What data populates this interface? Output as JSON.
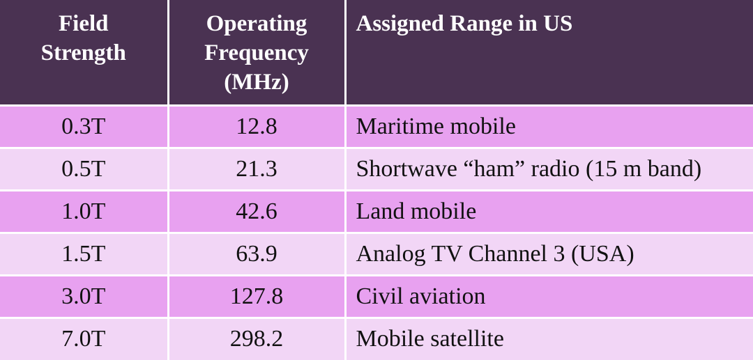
{
  "table": {
    "headers": [
      "Field\nStrength",
      "Operating\nFrequency\n(MHz)",
      "Assigned Range in US"
    ],
    "rows": [
      [
        "0.3T",
        "12.8",
        "Maritime mobile"
      ],
      [
        "0.5T",
        "21.3",
        "Shortwave “ham” radio (15 m band)"
      ],
      [
        "1.0T",
        "42.6",
        "Land mobile"
      ],
      [
        "1.5T",
        "63.9",
        "Analog TV Channel 3 (USA)"
      ],
      [
        "3.0T",
        "127.8",
        "Civil aviation"
      ],
      [
        "7.0T",
        "298.2",
        "Mobile satellite"
      ]
    ]
  },
  "colors": {
    "header_bg": "#4a3252",
    "row_odd_bg": "#e8a1f0",
    "row_even_bg": "#f2d6f6",
    "header_text": "#ffffff"
  }
}
